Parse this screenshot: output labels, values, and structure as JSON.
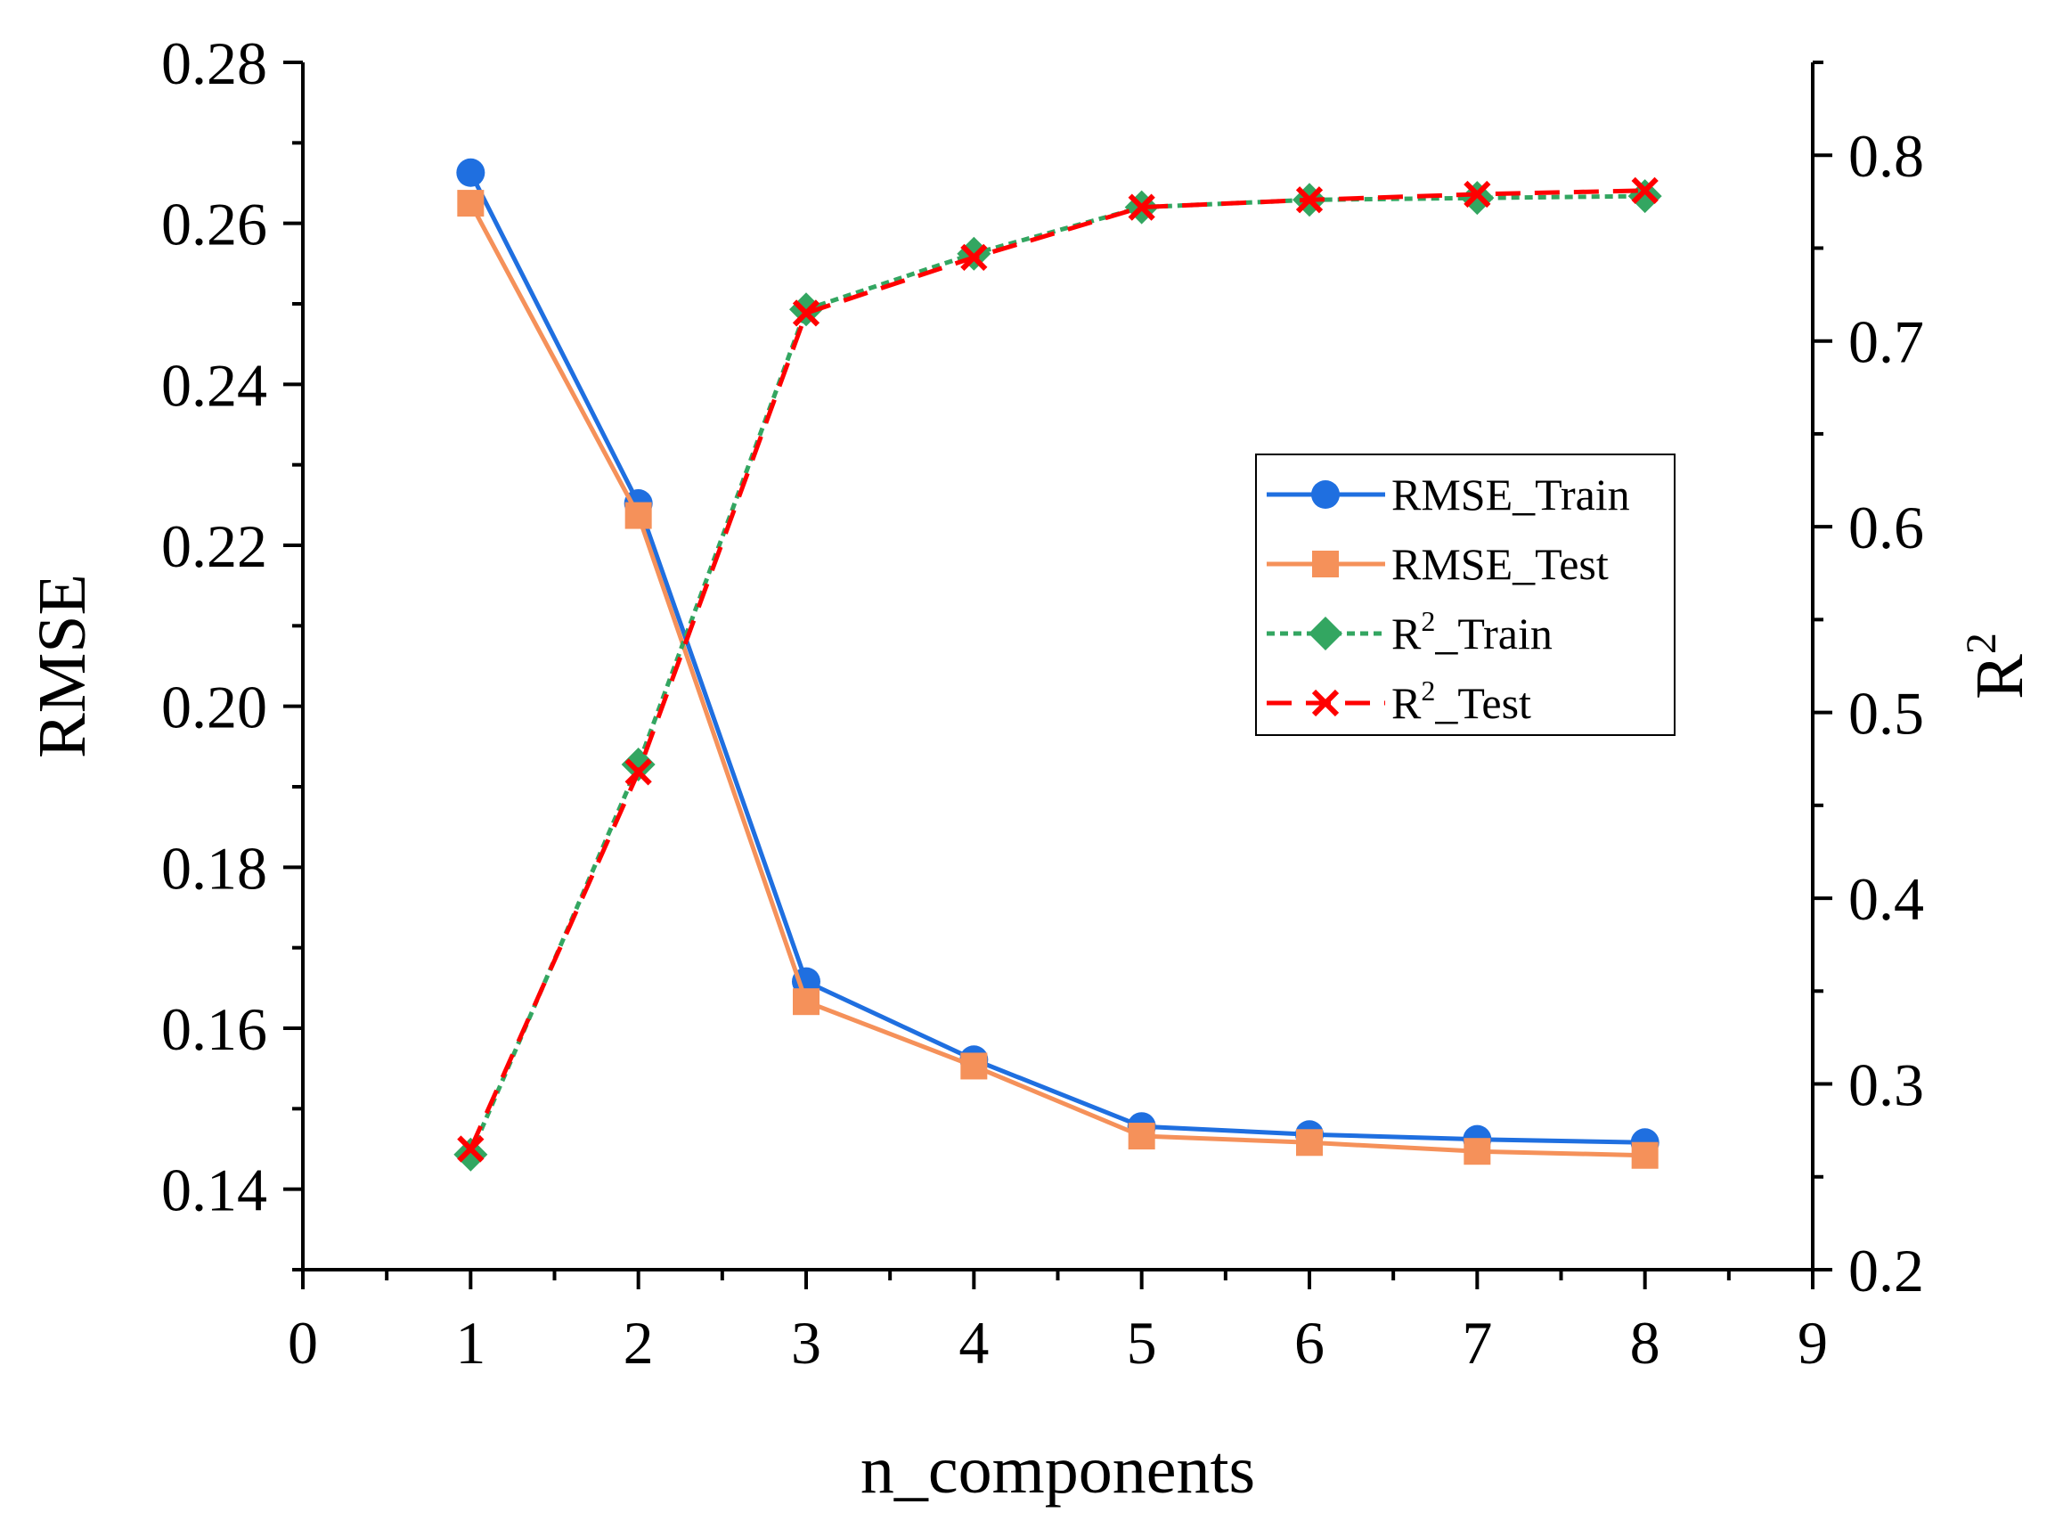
{
  "chart_data": {
    "type": "line",
    "title": "",
    "xlabel": "n_components",
    "ylabel_left": "RMSE",
    "ylabel_right_base": "R",
    "ylabel_right_sup": "2",
    "xlim": [
      0,
      9
    ],
    "ylim_left": [
      0.13,
      0.28
    ],
    "ylim_right": [
      0.2,
      0.85
    ],
    "x_ticks": [
      "0",
      "1",
      "2",
      "3",
      "4",
      "5",
      "6",
      "7",
      "8",
      "9"
    ],
    "y_left_ticks": [
      "0.14",
      "0.16",
      "0.18",
      "0.20",
      "0.22",
      "0.24",
      "0.26",
      "0.28"
    ],
    "y_right_ticks": [
      "0.2",
      "0.3",
      "0.4",
      "0.5",
      "0.6",
      "0.7",
      "0.8"
    ],
    "x": [
      1,
      2,
      3,
      4,
      5,
      6,
      7,
      8
    ],
    "legend_position": "center-right",
    "series": [
      {
        "name": "RMSE_Train",
        "legend_base": "RMSE_Train",
        "legend_sup": "",
        "legend_tail": "",
        "axis": "left",
        "color": "#1f6fe0",
        "marker": "circle",
        "dash": "solid",
        "values": [
          0.2663,
          0.2252,
          0.1658,
          0.1561,
          0.1478,
          0.1468,
          0.1462,
          0.1458
        ]
      },
      {
        "name": "RMSE_Test",
        "legend_base": "RMSE_Test",
        "legend_sup": "",
        "legend_tail": "",
        "axis": "left",
        "color": "#f5915a",
        "marker": "square",
        "dash": "solid",
        "values": [
          0.2625,
          0.2237,
          0.1633,
          0.1553,
          0.1466,
          0.1458,
          0.1447,
          0.1442
        ]
      },
      {
        "name": "R2_Train",
        "legend_base": "R",
        "legend_sup": "2",
        "legend_tail": "_Train",
        "axis": "right",
        "color": "#33a661",
        "marker": "diamond",
        "dash": "dashed",
        "values": [
          0.262,
          0.472,
          0.717,
          0.747,
          0.772,
          0.776,
          0.777,
          0.778
        ]
      },
      {
        "name": "R2_Test",
        "legend_base": "R",
        "legend_sup": "2",
        "legend_tail": "_Test",
        "axis": "right",
        "color": "#ff0000",
        "marker": "cross",
        "dash": "dashed",
        "values": [
          0.265,
          0.468,
          0.715,
          0.745,
          0.772,
          0.776,
          0.779,
          0.781
        ]
      }
    ]
  }
}
